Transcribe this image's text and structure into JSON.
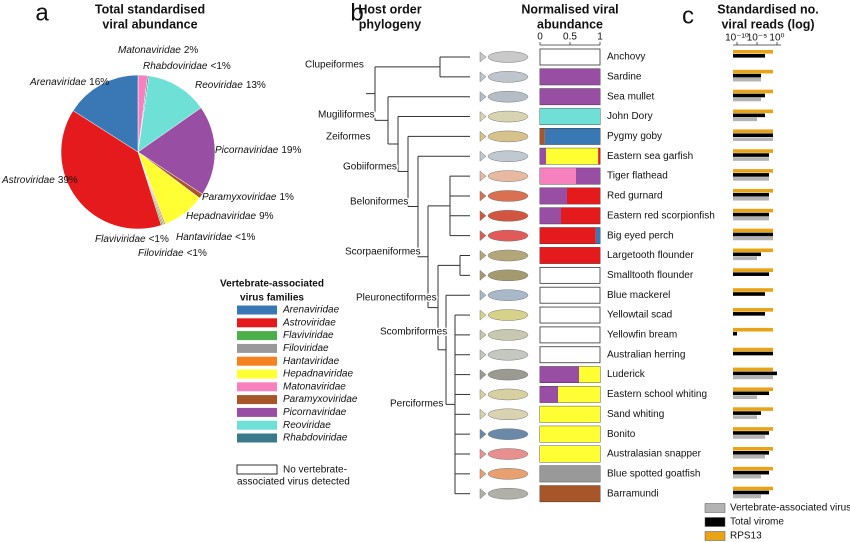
{
  "chart_data": [
    {
      "type": "pie",
      "panel_label": "a",
      "title": [
        "Total standardised",
        "viral abundance"
      ],
      "categories": [
        "Matonaviridae",
        "Rhabdoviridae",
        "Reoviridae",
        "Picornaviridae",
        "Paramyxoviridae",
        "Hepadnaviridae",
        "Hantaviridae",
        "Filoviridae",
        "Flaviviridae",
        "Astroviridae",
        "Arenaviridae"
      ],
      "values": [
        2,
        0.3,
        13,
        19,
        1,
        9,
        0.3,
        0.3,
        0.3,
        39,
        16
      ],
      "value_labels": [
        "2%",
        "<1%",
        "13%",
        "19%",
        "1%",
        "9%",
        "<1%",
        "<1%",
        "<1%",
        "39%",
        "16%"
      ],
      "colors": [
        "#f781bf",
        "#3b7a8a",
        "#6ee0d6",
        "#984ea3",
        "#a65628",
        "#ffff33",
        "#f58220",
        "#999999",
        "#4daf4a",
        "#e41a1c",
        "#3a78b5"
      ],
      "legend": {
        "title": [
          "Vertebrate-associated",
          "virus families"
        ],
        "entries": [
          {
            "name": "Arenaviridae",
            "color": "#3a78b5"
          },
          {
            "name": "Astroviridae",
            "color": "#e41a1c"
          },
          {
            "name": "Flaviviridae",
            "color": "#4daf4a"
          },
          {
            "name": "Filoviridae",
            "color": "#999999"
          },
          {
            "name": "Hantaviridae",
            "color": "#f58220"
          },
          {
            "name": "Hepadnaviridae",
            "color": "#ffff33"
          },
          {
            "name": "Matonaviridae",
            "color": "#f781bf"
          },
          {
            "name": "Paramyxoviridae",
            "color": "#a65628"
          },
          {
            "name": "Picornaviridae",
            "color": "#984ea3"
          },
          {
            "name": "Reoviridae",
            "color": "#6ee0d6"
          },
          {
            "name": "Rhabdoviridae",
            "color": "#3b7a8a"
          }
        ],
        "none_label": [
          "No vertebrate-",
          "associated virus detected"
        ]
      }
    },
    {
      "type": "tree",
      "panel_label": "b",
      "title": [
        "Host order",
        "phylogeny"
      ],
      "clade_labels": [
        "Clupeiformes",
        "Mugiliformes",
        "Zeiformes",
        "Gobiiformes",
        "Beloniformes",
        "Scorpaeniformes",
        "Pleuronectiformes",
        "Scombriformes",
        "Perciformes"
      ]
    },
    {
      "type": "stacked_bar",
      "title": [
        "Normalised viral",
        "abundance"
      ],
      "categories": [
        "Anchovy",
        "Sardine",
        "Sea mullet",
        "John Dory",
        "Pygmy goby",
        "Eastern sea garfish",
        "Tiger flathead",
        "Red gurnard",
        "Eastern red scorpionfish",
        "Big eyed perch",
        "Largetooth flounder",
        "Smalltooth flounder",
        "Blue mackerel",
        "Yellowtail scad",
        "Yellowfin bream",
        "Australian herring",
        "Luderick",
        "Eastern school whiting",
        "Sand whiting",
        "Bonito",
        "Australasian snapper",
        "Blue spotted goatfish",
        "Barramundi"
      ],
      "xlim": [
        0,
        1
      ],
      "xticks": [
        0,
        0.5,
        1
      ],
      "series": [
        {
          "color": "#a65628",
          "values": [
            0,
            0,
            0,
            0,
            0.08,
            0,
            0,
            0,
            0,
            0,
            0,
            0,
            0,
            0,
            0,
            0,
            0,
            0,
            0,
            0,
            0,
            0,
            1
          ]
        },
        {
          "color": "#f781bf",
          "values": [
            0,
            0,
            0,
            0,
            0,
            0,
            0.6,
            0,
            0,
            0,
            0,
            0,
            0,
            0,
            0,
            0,
            0,
            0,
            0,
            0,
            0,
            0,
            0
          ]
        },
        {
          "color": "#984ea3",
          "values": [
            0,
            1,
            1,
            0,
            0,
            0.1,
            0.4,
            0.45,
            0.35,
            0,
            0,
            0,
            0,
            0,
            0,
            0,
            0.65,
            0.3,
            0,
            0,
            0,
            0,
            0
          ]
        },
        {
          "color": "#ffff33",
          "values": [
            0,
            0,
            0,
            0,
            0,
            0.87,
            0,
            0,
            0,
            0,
            0,
            0,
            0,
            0,
            0,
            0,
            0.35,
            0.7,
            1,
            1,
            1,
            0,
            0
          ]
        },
        {
          "color": "#e41a1c",
          "values": [
            0,
            0,
            0,
            0,
            0,
            0.03,
            0,
            0.55,
            0.65,
            0.93,
            1,
            0,
            0,
            0,
            0,
            0,
            0,
            0,
            0,
            0,
            0,
            0,
            0
          ]
        },
        {
          "color": "#3a78b5",
          "values": [
            0,
            0,
            0,
            0,
            0.92,
            0,
            0,
            0,
            0,
            0.07,
            0,
            0,
            0,
            0,
            0,
            0,
            0,
            0,
            0,
            0,
            0,
            0,
            0
          ]
        },
        {
          "color": "#6ee0d6",
          "values": [
            0,
            0,
            0,
            1,
            0,
            0,
            0,
            0,
            0,
            0,
            0,
            0,
            0,
            0,
            0,
            0,
            0,
            0,
            0,
            0,
            0,
            0,
            0
          ]
        },
        {
          "color": "#999999",
          "values": [
            0,
            0,
            0,
            0,
            0,
            0,
            0,
            0,
            0,
            0,
            0,
            0,
            0,
            0,
            0,
            0,
            0,
            0,
            0,
            0,
            0,
            1,
            0
          ]
        }
      ]
    },
    {
      "type": "grouped_bar",
      "panel_label": "c",
      "title": [
        "Standardised no.",
        "viral reads (log)"
      ],
      "xscale": "log",
      "xlim": [
        1e-11,
        10
      ],
      "xticks": [
        {
          "value": 1e-10,
          "label": "10⁻¹⁰"
        },
        {
          "value": 1e-05,
          "label": "10⁻⁵"
        },
        {
          "value": 1,
          "label": "10⁰"
        }
      ],
      "series": [
        {
          "name": "Vertebrate-associated viruses",
          "color": "#b3b3b3",
          "values": [
            null,
            0.0001,
            0.0001,
            1e-05,
            0.1,
            0.01,
            0.01,
            0.01,
            0.01,
            0.1,
            1e-05,
            null,
            null,
            null,
            null,
            null,
            0.1,
            1e-05,
            1e-05,
            0.001,
            0.001,
            0.0001,
            0.0001
          ]
        },
        {
          "name": "Total virome",
          "color": "#000000",
          "values": [
            0.001,
            0.0001,
            0.001,
            0.001,
            0.1,
            0.01,
            0.01,
            0.01,
            0.01,
            0.1,
            0.0001,
            0.01,
            0.001,
            0.001,
            1e-10,
            0.1,
            1,
            0.01,
            0.0001,
            0.01,
            0.01,
            0.01,
            0.01
          ]
        },
        {
          "name": "RPS13",
          "color": "#e8a317",
          "values": [
            0.1,
            0.1,
            0.1,
            0.1,
            0.1,
            0.1,
            0.1,
            0.1,
            0.1,
            0.1,
            0.1,
            0.1,
            0.1,
            0.1,
            0.1,
            0.1,
            0.1,
            0.1,
            0.1,
            0.1,
            0.1,
            0.1,
            0.1
          ]
        }
      ]
    }
  ]
}
